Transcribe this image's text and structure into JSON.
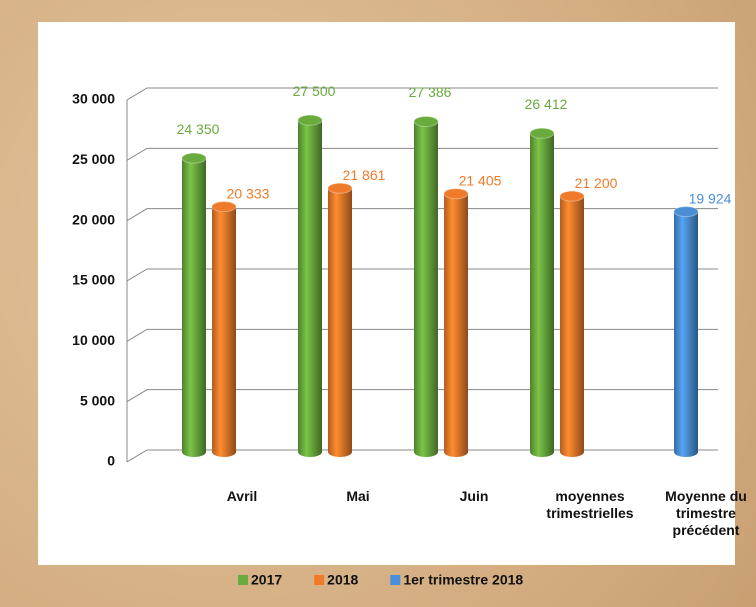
{
  "chart_data": {
    "type": "bar3d",
    "categories": [
      "Avril",
      "Mai",
      "Juin",
      "moyennes trimestrielles",
      "Moyenne du trimestre précédent"
    ],
    "series": [
      {
        "name": "2017",
        "color": "#6aab3e",
        "values": [
          24350,
          27500,
          27386,
          26412,
          null
        ],
        "value_labels": [
          "24 350",
          "27 500",
          "27 386",
          "26 412",
          null
        ]
      },
      {
        "name": "2018",
        "color": "#ef7b2a",
        "values": [
          20333,
          21861,
          21405,
          21200,
          null
        ],
        "value_labels": [
          "20 333",
          "21 861",
          "21 405",
          "21 200",
          null
        ]
      },
      {
        "name": "1er trimestre 2018",
        "color": "#4a8fd6",
        "values": [
          null,
          null,
          null,
          null,
          19924
        ],
        "value_labels": [
          null,
          null,
          null,
          null,
          "19 924"
        ]
      }
    ],
    "ylim": [
      0,
      30000
    ],
    "yticks": [
      0,
      {
        "value": 5000,
        "label": "5 000"
      },
      {
        "value": 10000,
        "label": "10 000"
      },
      {
        "value": 15000,
        "label": "15 000"
      },
      {
        "value": 20000,
        "label": "20 000"
      },
      {
        "value": 25000,
        "label": "25 000"
      },
      {
        "value": 30000,
        "label": "30 000"
      }
    ],
    "grid": true
  }
}
